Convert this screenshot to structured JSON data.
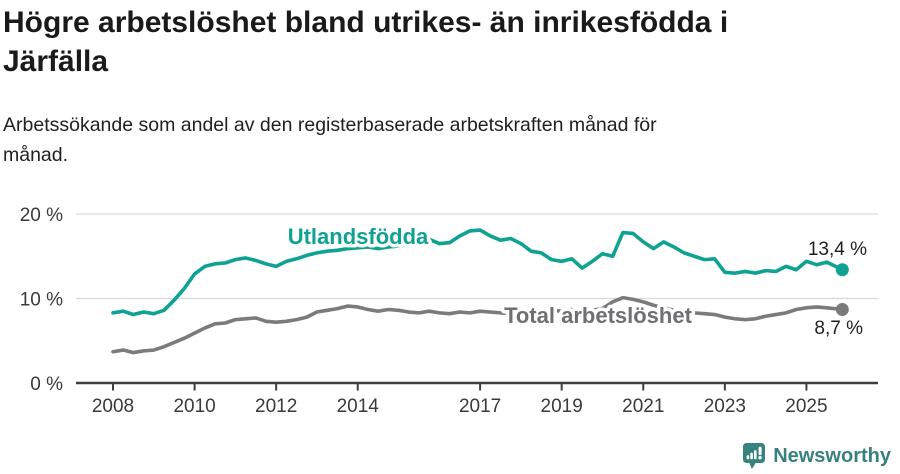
{
  "header": {
    "title_line1": "Högre arbetslöshet bland utrikes- än inrikesfödda i",
    "title_line2": "Järfälla",
    "subtitle_line1": "Arbetssökande som andel av den registerbaserade arbetskraften månad för",
    "subtitle_line2": "månad."
  },
  "footer": {
    "brand": "Newsworthy",
    "brand_color": "#37827E",
    "logo_icon": "newsworthy-speech-bubble-bar-chart-icon"
  },
  "chart_data": {
    "type": "line",
    "title": "Högre arbetslöshet bland utrikes- än inrikesfödda i Järfälla",
    "subtitle": "Arbetssökande som andel av den registerbaserade arbetskraften månad för månad.",
    "unit": "%",
    "grid": "horizontal-only",
    "legend_position": "inline-labels",
    "ylim": [
      0,
      20
    ],
    "xlim": [
      2007.15,
      2026.75
    ],
    "x_axis": {
      "ticks": [
        2008,
        2010,
        2012,
        2014,
        2017,
        2019,
        2021,
        2023,
        2025
      ],
      "labels": [
        "2008",
        "2010",
        "2012",
        "2014",
        "2017",
        "2019",
        "2021",
        "2023",
        "2025"
      ]
    },
    "y_axis": {
      "ticks": [
        0,
        10,
        20
      ],
      "labels": [
        "0 %",
        "10 %",
        "20 %"
      ],
      "gridlines": [
        10,
        20
      ]
    },
    "x": [
      2008.0,
      2008.25,
      2008.5,
      2008.75,
      2009.0,
      2009.25,
      2009.5,
      2009.75,
      2010.0,
      2010.25,
      2010.5,
      2010.75,
      2011.0,
      2011.25,
      2011.5,
      2011.75,
      2012.0,
      2012.25,
      2012.5,
      2012.75,
      2013.0,
      2013.25,
      2013.5,
      2013.75,
      2014.0,
      2014.25,
      2014.5,
      2014.75,
      2015.0,
      2015.25,
      2015.5,
      2015.75,
      2016.0,
      2016.25,
      2016.5,
      2016.75,
      2017.0,
      2017.25,
      2017.5,
      2017.75,
      2018.0,
      2018.25,
      2018.5,
      2018.75,
      2019.0,
      2019.25,
      2019.5,
      2019.75,
      2020.0,
      2020.25,
      2020.5,
      2020.75,
      2021.0,
      2021.25,
      2021.5,
      2021.75,
      2022.0,
      2022.25,
      2022.5,
      2022.75,
      2023.0,
      2023.25,
      2023.5,
      2023.75,
      2024.0,
      2024.25,
      2024.5,
      2024.75,
      2025.0,
      2025.25,
      2025.5,
      2025.88
    ],
    "series": [
      {
        "name": "Utlandsfödda",
        "color": "#0FA293",
        "label_color": "#0FA293",
        "end_annotation": "13,4 %",
        "end_value": 13.4,
        "values": [
          8.3,
          8.5,
          8.1,
          8.4,
          8.2,
          8.6,
          9.8,
          11.2,
          12.9,
          13.8,
          14.1,
          14.2,
          14.6,
          14.8,
          14.5,
          14.1,
          13.8,
          14.4,
          14.7,
          15.1,
          15.4,
          15.6,
          15.7,
          15.9,
          16.0,
          16.1,
          15.9,
          16.1,
          16.2,
          16.4,
          16.6,
          17.0,
          16.5,
          16.6,
          17.4,
          18.0,
          18.1,
          17.4,
          16.9,
          17.1,
          16.5,
          15.6,
          15.4,
          14.6,
          14.4,
          14.7,
          13.6,
          14.4,
          15.3,
          15.0,
          17.8,
          17.7,
          16.7,
          15.9,
          16.7,
          16.1,
          15.4,
          15.0,
          14.6,
          14.7,
          13.1,
          13.0,
          13.2,
          13.0,
          13.3,
          13.2,
          13.8,
          13.4,
          14.4,
          14.0,
          14.3,
          13.4
        ]
      },
      {
        "name": "Total arbetslöshet",
        "color": "#7B7B7B",
        "label_color": "#6F6F74",
        "end_annotation": "8,7 %",
        "end_value": 8.7,
        "values": [
          3.7,
          3.9,
          3.6,
          3.8,
          3.9,
          4.3,
          4.8,
          5.3,
          5.9,
          6.5,
          7.0,
          7.1,
          7.5,
          7.6,
          7.7,
          7.3,
          7.2,
          7.3,
          7.5,
          7.8,
          8.4,
          8.6,
          8.8,
          9.1,
          9.0,
          8.7,
          8.5,
          8.7,
          8.6,
          8.4,
          8.3,
          8.5,
          8.3,
          8.2,
          8.4,
          8.3,
          8.5,
          8.4,
          8.3,
          8.2,
          8.4,
          8.6,
          8.5,
          8.6,
          8.5,
          8.7,
          8.5,
          8.6,
          8.8,
          9.6,
          10.1,
          9.9,
          9.6,
          9.2,
          8.9,
          8.6,
          8.4,
          8.3,
          8.2,
          8.1,
          7.8,
          7.6,
          7.5,
          7.6,
          7.9,
          8.1,
          8.3,
          8.7,
          8.9,
          9.0,
          8.9,
          8.7
        ]
      }
    ]
  }
}
